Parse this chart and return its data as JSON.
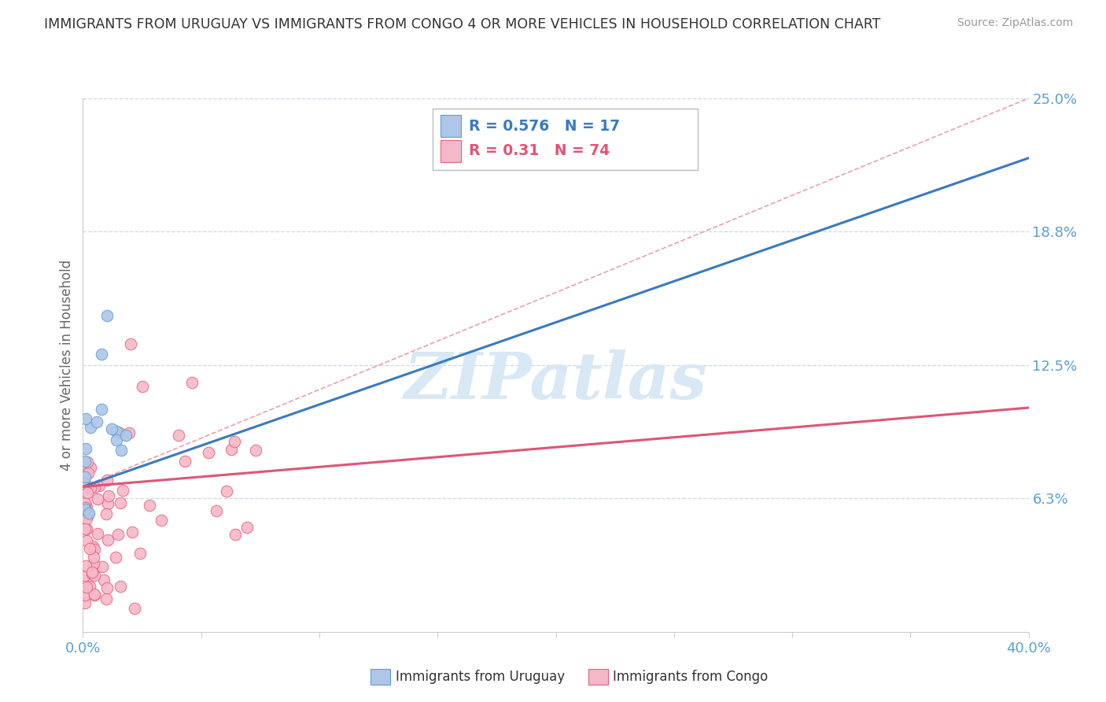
{
  "title": "IMMIGRANTS FROM URUGUAY VS IMMIGRANTS FROM CONGO 4 OR MORE VEHICLES IN HOUSEHOLD CORRELATION CHART",
  "source": "Source: ZipAtlas.com",
  "ylabel": "4 or more Vehicles in Household",
  "xlim": [
    0.0,
    0.4
  ],
  "ylim": [
    0.0,
    0.25
  ],
  "uruguay_fill_color": "#aec6e8",
  "uruguay_edge_color": "#5a9fd4",
  "congo_fill_color": "#f5b8c8",
  "congo_edge_color": "#e8607a",
  "uruguay_line_color": "#3a7abf",
  "congo_line_color": "#e05575",
  "diagonal_color": "#e8a0b0",
  "R_uruguay": 0.576,
  "N_uruguay": 17,
  "R_congo": 0.31,
  "N_congo": 74,
  "watermark_color": "#d8e8f5",
  "grid_color": "#c8d8e8",
  "tick_color": "#5a9fd4",
  "title_color": "#333333",
  "source_color": "#999999",
  "ylabel_color": "#666666",
  "uru_line_x0": 0.0,
  "uru_line_y0": 0.068,
  "uru_line_x1": 0.4,
  "uru_line_y1": 0.222,
  "congo_line_x0": 0.0,
  "congo_line_y0": 0.068,
  "congo_line_x1": 0.4,
  "congo_line_y1": 0.105,
  "diag_line_x0": 0.0,
  "diag_line_y0": 0.068,
  "diag_line_x1": 0.4,
  "diag_line_y1": 0.25
}
